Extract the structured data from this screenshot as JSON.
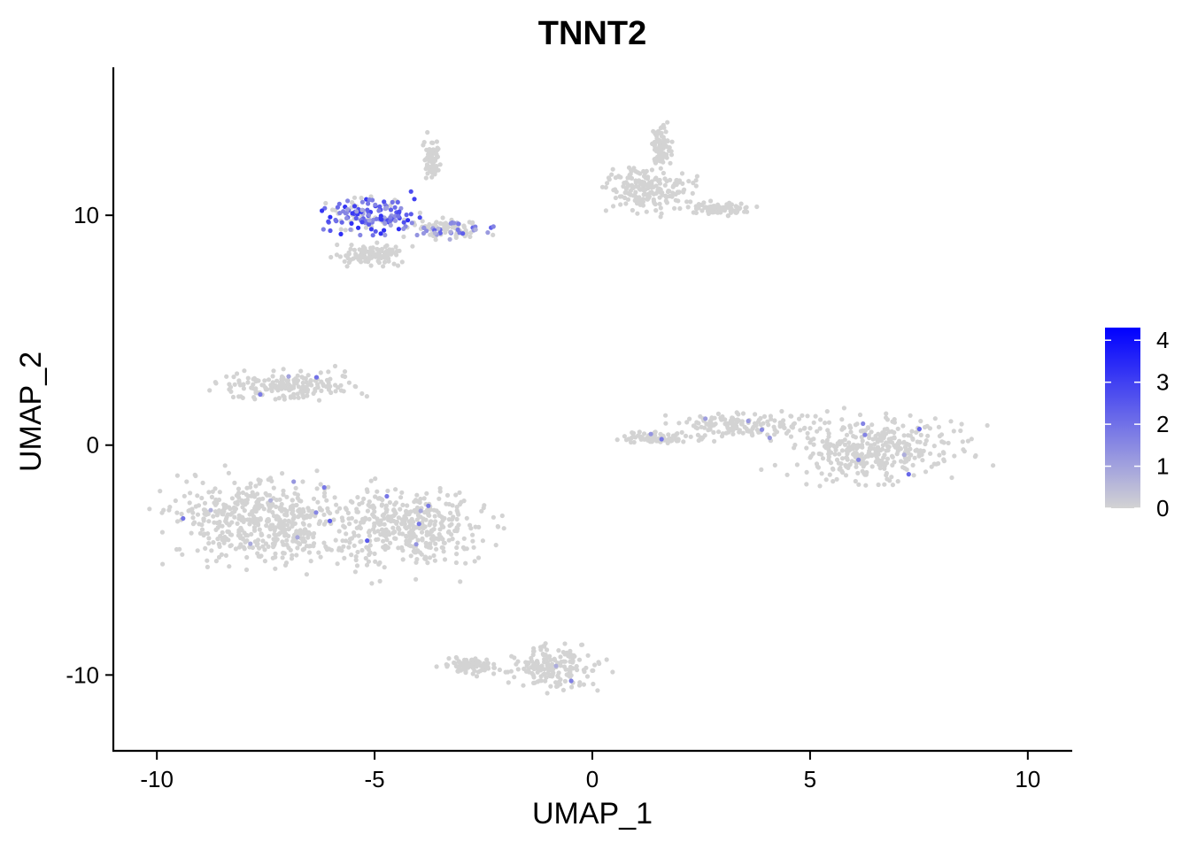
{
  "chart_data": {
    "type": "scatter",
    "title": "TNNT2",
    "xlabel": "UMAP_1",
    "ylabel": "UMAP_2",
    "xlim": [
      -11,
      11
    ],
    "ylim": [
      -13.3,
      16.4
    ],
    "xticks": [
      -10,
      -5,
      0,
      5,
      10
    ],
    "xtick_labels": [
      "-10",
      "-5",
      "0",
      "5",
      "10"
    ],
    "yticks": [
      -10,
      0,
      10
    ],
    "ytick_labels": [
      "-10",
      "0",
      "10"
    ],
    "grid": false,
    "color_scale": {
      "low_color": "#d3d3d3",
      "high_color": "#0000ff",
      "min": 0,
      "max": 4.3,
      "ticks": [
        0,
        1,
        2,
        3,
        4
      ],
      "tick_labels": [
        "0",
        "1",
        "2",
        "3",
        "4"
      ],
      "legend_position": "right"
    },
    "clusters": [
      {
        "center": [
          -7.5,
          -3.3
        ],
        "spread": [
          1.9,
          1.6
        ],
        "expression": "low"
      },
      {
        "center": [
          -4.2,
          -3.6
        ],
        "spread": [
          1.4,
          1.5
        ],
        "expression": "low"
      },
      {
        "center": [
          -7.0,
          2.6
        ],
        "spread": [
          1.4,
          0.55
        ],
        "expression": "low"
      },
      {
        "center": [
          -5.1,
          10.0
        ],
        "spread": [
          0.9,
          0.7
        ],
        "expression": "high"
      },
      {
        "center": [
          -3.2,
          9.4
        ],
        "spread": [
          0.7,
          0.35
        ],
        "expression": "medium"
      },
      {
        "center": [
          -5.0,
          8.3
        ],
        "spread": [
          0.7,
          0.4
        ],
        "expression": "none"
      },
      {
        "center": [
          -3.7,
          12.3
        ],
        "spread": [
          0.15,
          0.8
        ],
        "expression": "none"
      },
      {
        "center": [
          1.3,
          11.2
        ],
        "spread": [
          0.9,
          0.9
        ],
        "expression": "none"
      },
      {
        "center": [
          1.6,
          13.0
        ],
        "spread": [
          0.2,
          0.8
        ],
        "expression": "none"
      },
      {
        "center": [
          2.9,
          10.3
        ],
        "spread": [
          0.6,
          0.25
        ],
        "expression": "none"
      },
      {
        "center": [
          6.5,
          -0.2
        ],
        "spread": [
          1.7,
          1.2
        ],
        "expression": "low"
      },
      {
        "center": [
          3.5,
          0.9
        ],
        "spread": [
          1.2,
          0.45
        ],
        "expression": "low"
      },
      {
        "center": [
          1.5,
          0.3
        ],
        "spread": [
          0.8,
          0.2
        ],
        "expression": "low"
      },
      {
        "center": [
          -0.9,
          -9.7
        ],
        "spread": [
          0.9,
          0.8
        ],
        "expression": "low"
      },
      {
        "center": [
          -2.8,
          -9.6
        ],
        "spread": [
          0.5,
          0.3
        ],
        "expression": "none"
      }
    ]
  }
}
